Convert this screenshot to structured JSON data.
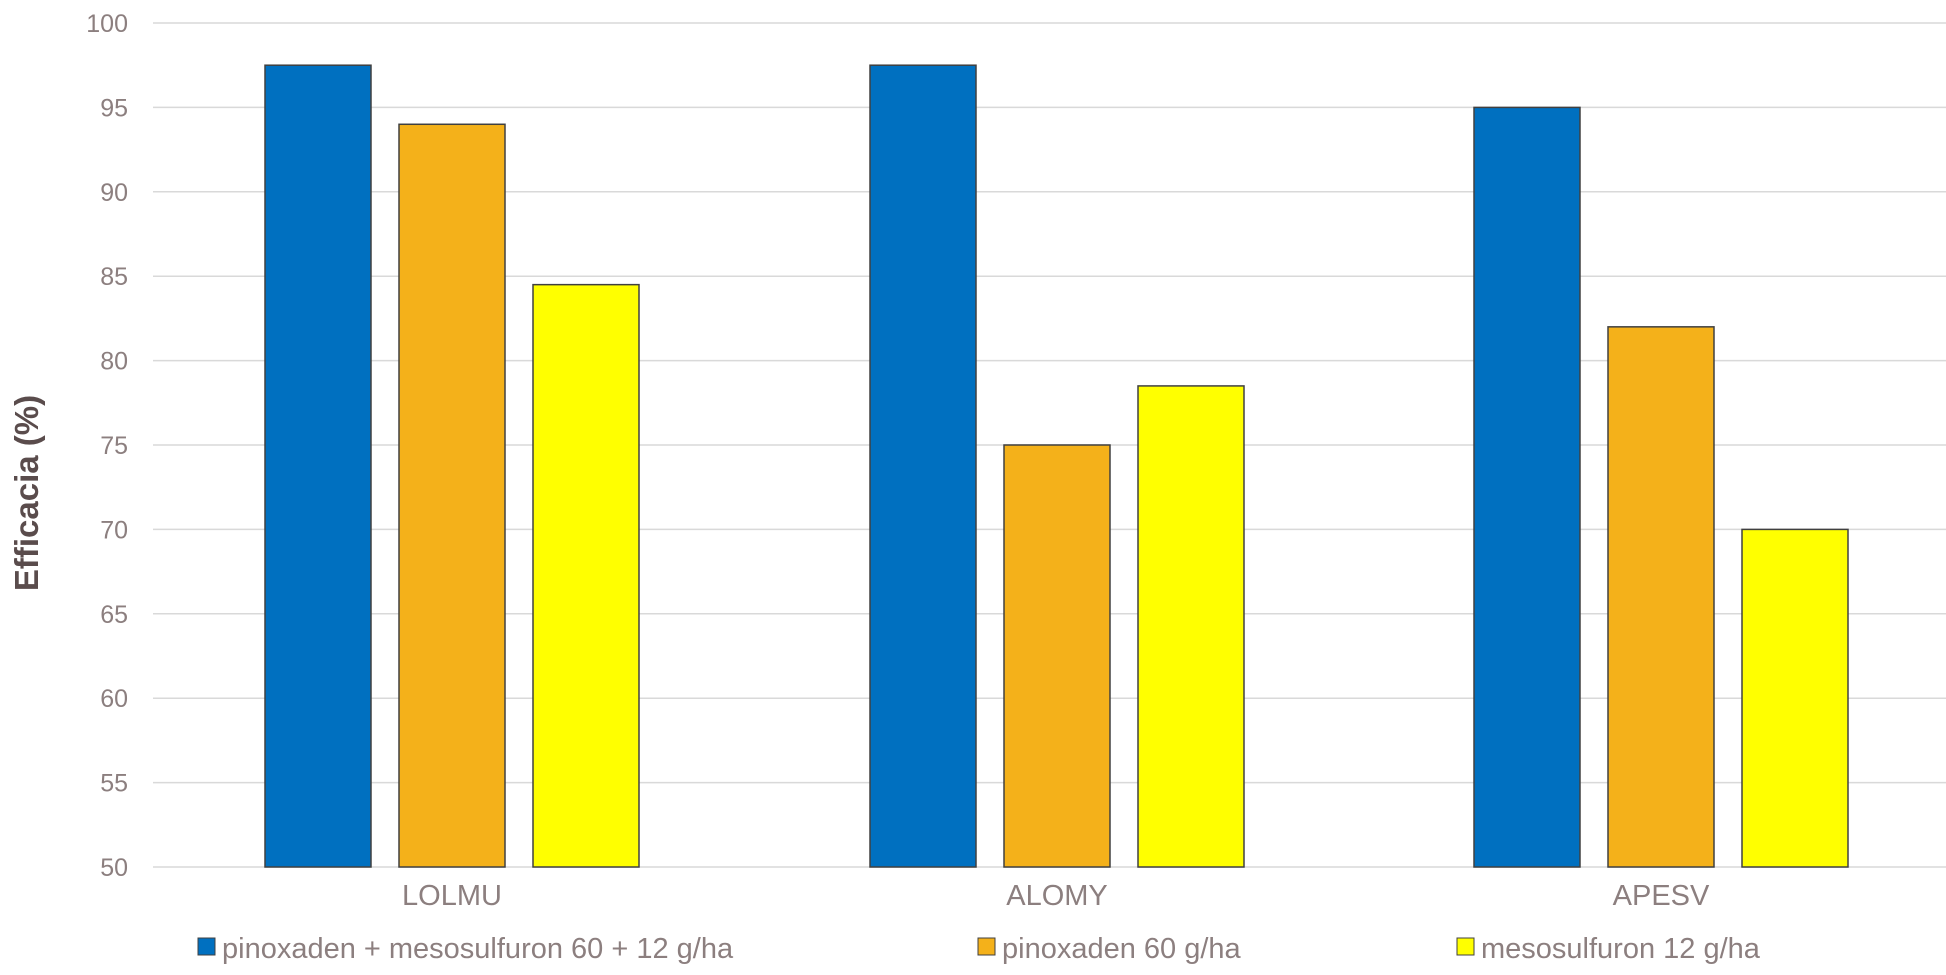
{
  "chart_data": {
    "type": "bar",
    "title": "",
    "xlabel": "",
    "ylabel": "Efficacia (%)",
    "ylim": [
      50,
      100
    ],
    "yticks": [
      50,
      55,
      60,
      65,
      70,
      75,
      80,
      85,
      90,
      95,
      100
    ],
    "grid": true,
    "legend_position": "bottom",
    "categories": [
      "LOLMU",
      "ALOMY",
      "APESV"
    ],
    "series": [
      {
        "name": "pinoxaden + mesosulfuron 60 + 12 g/ha",
        "color": "#0070C0",
        "values": [
          97.5,
          97.5,
          95
        ]
      },
      {
        "name": "pinoxaden 60 g/ha",
        "color": "#F4B11A",
        "values": [
          94,
          75,
          82
        ]
      },
      {
        "name": "mesosulfuron 12 g/ha",
        "color": "#FFFF00",
        "values": [
          84.5,
          78.5,
          70
        ]
      }
    ]
  }
}
